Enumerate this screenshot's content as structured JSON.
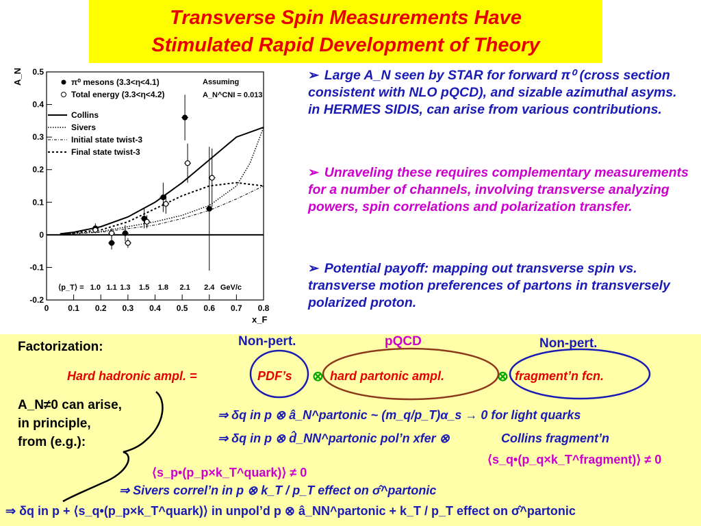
{
  "colors": {
    "title": "#e60000",
    "title_bg": "#ffff00",
    "panel_bg": "#ffffaa",
    "blue": "#1a1ab4",
    "magenta": "#cc00cc",
    "green": "#00aa00"
  },
  "title": {
    "line1": "Transverse Spin Measurements Have",
    "line2": "Stimulated Rapid Development of Theory"
  },
  "chart_data": {
    "type": "scatter",
    "ylabel": "A_N",
    "xlabel": "x_F",
    "xlim": [
      0,
      0.8
    ],
    "ylim": [
      -0.2,
      0.5
    ],
    "x_ticks": [
      "0",
      "0.1",
      "0.2",
      "0.3",
      "0.4",
      "0.5",
      "0.6",
      "0.7",
      "0.8"
    ],
    "y_ticks": [
      "-0.2",
      "-0.1",
      "0",
      "0.1",
      "0.2",
      "0.3",
      "0.4",
      "0.5"
    ],
    "legend": {
      "pi0": "π⁰ mesons (3.3<η<4.1)",
      "total": "Total energy (3.3<η<4.2)",
      "collins": "Collins",
      "sivers": "Sivers",
      "initial": "Initial state twist-3",
      "final": "Final state twist-3",
      "assuming": "Assuming",
      "acni": "A_N^CNI = 0.013"
    },
    "pt_label": "⟨p_T⟩ =",
    "pt_values": [
      "1.0",
      "1.1",
      "1.3",
      "1.5",
      "1.8",
      "2.1",
      "2.4",
      "GeV/c"
    ],
    "series": [
      {
        "name": "π⁰ mesons (3.3<η<4.1)",
        "marker": "filled",
        "points": [
          {
            "x": 0.18,
            "y": 0.02,
            "err": 0.015
          },
          {
            "x": 0.24,
            "y": -0.025,
            "err": 0.02
          },
          {
            "x": 0.29,
            "y": 0.005,
            "err": 0.025
          },
          {
            "x": 0.36,
            "y": 0.05,
            "err": 0.03
          },
          {
            "x": 0.43,
            "y": 0.115,
            "err": 0.045
          },
          {
            "x": 0.51,
            "y": 0.36,
            "err": 0.07
          },
          {
            "x": 0.6,
            "y": 0.08,
            "err": 0.19
          }
        ]
      },
      {
        "name": "Total energy (3.3<η<4.2)",
        "marker": "open",
        "points": [
          {
            "x": 0.18,
            "y": 0.015,
            "err": 0.01
          },
          {
            "x": 0.24,
            "y": 0.005,
            "err": 0.015
          },
          {
            "x": 0.3,
            "y": -0.025,
            "err": 0.015
          },
          {
            "x": 0.37,
            "y": 0.04,
            "err": 0.02
          },
          {
            "x": 0.44,
            "y": 0.095,
            "err": 0.03
          },
          {
            "x": 0.52,
            "y": 0.22,
            "err": 0.06
          },
          {
            "x": 0.61,
            "y": 0.175,
            "err": 0.09
          }
        ]
      }
    ],
    "curves": [
      {
        "name": "Collins",
        "style": "solid",
        "points": [
          [
            0.05,
            0.003
          ],
          [
            0.1,
            0.008
          ],
          [
            0.2,
            0.025
          ],
          [
            0.3,
            0.055
          ],
          [
            0.4,
            0.1
          ],
          [
            0.5,
            0.16
          ],
          [
            0.6,
            0.23
          ],
          [
            0.7,
            0.3
          ],
          [
            0.8,
            0.33
          ]
        ]
      },
      {
        "name": "Sivers",
        "style": "dotted",
        "points": [
          [
            0.05,
            0.001
          ],
          [
            0.2,
            0.01
          ],
          [
            0.4,
            0.04
          ],
          [
            0.5,
            0.06
          ],
          [
            0.6,
            0.09
          ],
          [
            0.7,
            0.15
          ],
          [
            0.75,
            0.22
          ],
          [
            0.8,
            0.33
          ]
        ]
      },
      {
        "name": "Initial state twist-3",
        "style": "dashdot",
        "points": [
          [
            0.05,
            0.001
          ],
          [
            0.2,
            0.008
          ],
          [
            0.4,
            0.03
          ],
          [
            0.5,
            0.05
          ],
          [
            0.6,
            0.075
          ],
          [
            0.7,
            0.11
          ],
          [
            0.8,
            0.15
          ]
        ]
      },
      {
        "name": "Final state twist-3",
        "style": "dashed",
        "points": [
          [
            0.05,
            0.002
          ],
          [
            0.2,
            0.015
          ],
          [
            0.3,
            0.04
          ],
          [
            0.4,
            0.08
          ],
          [
            0.5,
            0.12
          ],
          [
            0.6,
            0.15
          ],
          [
            0.7,
            0.16
          ],
          [
            0.8,
            0.15
          ]
        ]
      }
    ]
  },
  "bullets": [
    {
      "arrow": "➢",
      "text": "Large A_N seen by STAR for forward π⁰ (cross section consistent with NLO pQCD), and sizable azimuthal asyms. in HERMES SIDIS, can arise from various contributions.",
      "color": "#1a1ab4"
    },
    {
      "arrow": "➢",
      "text": "Unraveling these requires complementary measurements for a number of channels, involving transverse analyzing powers, spin correlations and polarization transfer.",
      "color": "#cc00cc"
    },
    {
      "arrow": "➢",
      "text": "Potential payoff: mapping out transverse spin vs. transverse motion preferences of partons in transversely polarized proton.",
      "color": "#1a1ab4"
    }
  ],
  "panel": {
    "factorization": "Factorization:",
    "nonpert_left": "Non-pert.",
    "pqcd": "pQCD",
    "nonpert_right": "Non-pert.",
    "hard_label": "Hard hadronic ampl. =",
    "pdf": "PDF’s",
    "otimes": "⊗",
    "hard_partonic": "hard partonic ampl.",
    "fragment": "fragment’n fcn.",
    "an_line1": "A_N≠0 can arise,",
    "an_line2": "in principle,",
    "an_line3": "from (e.g.):",
    "row1": "⇒ δq in p ⊗ â_N^partonic ~ (m_q/p_T)α_s → 0 for light quarks",
    "row2a": "⇒ δq in p ⊗ d̂_NN^partonic pol’n xfer ⊗",
    "row2b": "Collins fragment’n",
    "row3": "⟨s_q•(p_q×k_T^fragment)⟩ ≠ 0",
    "row4": "⟨s_p•(p_p×k_T^quark)⟩ ≠ 0",
    "row5": "⇒ Sivers correl’n in p ⊗ k_T / p_T effect on σ̂^partonic",
    "row6": "⇒ δq in p + ⟨s_q•(p_p×k_T^quark)⟩ in unpol’d p ⊗ â_NN^partonic + k_T / p_T effect on σ̂^partonic"
  }
}
